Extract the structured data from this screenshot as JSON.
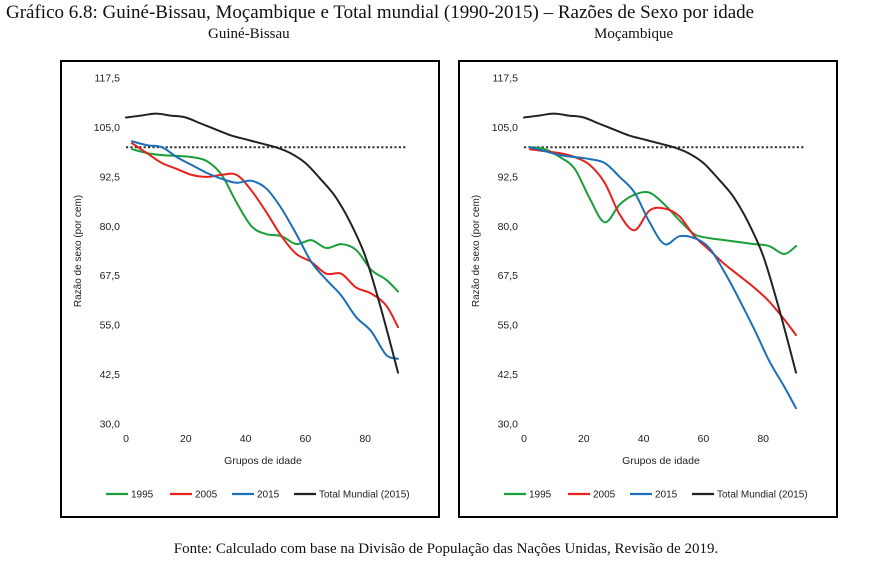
{
  "title": "Gráfico 6.8: Guiné-Bissau, Moçambique e Total mundial (1990-2015) – Razões de Sexo por idade",
  "source": "Fonte: Calculado com base na Divisão de População das Nações Unidas, Revisão de 2019.",
  "chart_data": [
    {
      "type": "line",
      "title": "Guiné-Bissau",
      "xlabel": "Grupos de idade",
      "ylabel": "Razão de sexo (por cem)",
      "xlim": [
        0,
        95
      ],
      "ylim": [
        30,
        117.5
      ],
      "xticks": [
        "0",
        "20",
        "40",
        "60",
        "80"
      ],
      "yticks": [
        "30,0",
        "42,5",
        "55,0",
        "67,5",
        "80,0",
        "92,5",
        "105,0",
        "117,5"
      ],
      "reference_line": 100,
      "legend_position": "bottom",
      "series": [
        {
          "name": "1995",
          "color": "#1a9e3a",
          "x": [
            2,
            7,
            12,
            17,
            22,
            27,
            32,
            37,
            42,
            47,
            52,
            57,
            62,
            67,
            72,
            77,
            82,
            87,
            91
          ],
          "y": [
            99.5,
            98.5,
            98,
            97.8,
            97.5,
            96.5,
            93,
            86,
            80,
            78,
            77.5,
            75.5,
            76.5,
            74.5,
            75.5,
            74,
            69,
            66.5,
            63.5
          ]
        },
        {
          "name": "2005",
          "color": "#e8211c",
          "x": [
            2,
            7,
            12,
            17,
            22,
            27,
            32,
            37,
            42,
            47,
            52,
            57,
            62,
            67,
            72,
            77,
            82,
            87,
            91
          ],
          "y": [
            101,
            98.5,
            96,
            94.5,
            93,
            92.5,
            93,
            93,
            89,
            83.5,
            77.5,
            73,
            71,
            68,
            68,
            64.5,
            63,
            60,
            54.5
          ]
        },
        {
          "name": "2015",
          "color": "#1a6fb8",
          "x": [
            2,
            7,
            12,
            17,
            22,
            27,
            32,
            37,
            42,
            47,
            52,
            57,
            62,
            67,
            72,
            77,
            82,
            87,
            91
          ],
          "y": [
            101.5,
            100.5,
            100,
            97.5,
            95.5,
            93.5,
            92,
            91,
            91.5,
            89.5,
            84.5,
            78,
            71,
            66.5,
            62.5,
            57,
            53.5,
            47.5,
            46.5
          ]
        },
        {
          "name": "Total Mundial (2015)",
          "color": "#222222",
          "x": [
            0,
            5,
            10,
            15,
            20,
            25,
            30,
            35,
            40,
            45,
            50,
            55,
            60,
            65,
            70,
            75,
            80,
            85,
            91
          ],
          "y": [
            107.5,
            108,
            108.5,
            108,
            107.5,
            106,
            104.5,
            103,
            102,
            101,
            100,
            98.5,
            96,
            92,
            87.5,
            81,
            72.5,
            60,
            43
          ]
        }
      ]
    },
    {
      "type": "line",
      "title": "Moçambique",
      "xlabel": "Grupos de idade",
      "ylabel": "Razão de sexo (por cem)",
      "xlim": [
        0,
        95
      ],
      "ylim": [
        30,
        117.5
      ],
      "xticks": [
        "0",
        "20",
        "40",
        "60",
        "80"
      ],
      "yticks": [
        "30,0",
        "42,5",
        "55,0",
        "67,5",
        "80,0",
        "92,5",
        "105,0",
        "117,5"
      ],
      "reference_line": 100,
      "legend_position": "bottom",
      "series": [
        {
          "name": "1995",
          "color": "#1a9e3a",
          "x": [
            2,
            7,
            12,
            17,
            22,
            27,
            32,
            37,
            42,
            47,
            52,
            57,
            62,
            67,
            72,
            77,
            82,
            87,
            91
          ],
          "y": [
            100,
            99.5,
            97.5,
            94.5,
            87,
            81,
            85.5,
            88,
            88.5,
            85.5,
            81.5,
            78,
            77,
            76.5,
            76,
            75.5,
            75,
            73,
            75
          ]
        },
        {
          "name": "2005",
          "color": "#e8211c",
          "x": [
            2,
            7,
            12,
            17,
            22,
            27,
            32,
            37,
            42,
            47,
            52,
            57,
            62,
            67,
            72,
            77,
            82,
            87,
            91
          ],
          "y": [
            99.5,
            99,
            98.5,
            97.5,
            95.5,
            91,
            83,
            79,
            84,
            84.5,
            82.5,
            77.5,
            74,
            70.5,
            67.5,
            64.5,
            61,
            56.5,
            52.5
          ]
        },
        {
          "name": "2015",
          "color": "#1a6fb8",
          "x": [
            2,
            7,
            12,
            17,
            22,
            27,
            32,
            37,
            42,
            47,
            52,
            57,
            62,
            67,
            72,
            77,
            82,
            87,
            91
          ],
          "y": [
            100,
            99,
            98,
            97.5,
            97,
            96,
            92.5,
            88.5,
            81,
            75.5,
            77.5,
            77,
            74.5,
            68.5,
            61.5,
            54,
            46,
            39.5,
            34
          ]
        },
        {
          "name": "Total Mundial (2015)",
          "color": "#222222",
          "x": [
            0,
            5,
            10,
            15,
            20,
            25,
            30,
            35,
            40,
            45,
            50,
            55,
            60,
            65,
            70,
            75,
            80,
            85,
            91
          ],
          "y": [
            107.5,
            108,
            108.5,
            108,
            107.5,
            106,
            104.5,
            103,
            102,
            101,
            100,
            98.5,
            96,
            92,
            87.5,
            81,
            72.5,
            60,
            43
          ]
        }
      ]
    }
  ]
}
